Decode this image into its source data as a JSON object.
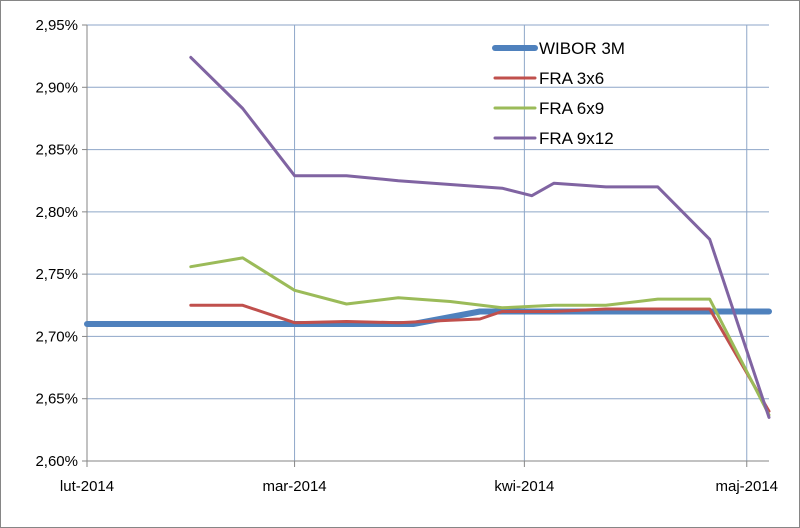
{
  "chart_data": {
    "type": "line",
    "title": "",
    "xlabel": "",
    "ylabel": "",
    "ylim": [
      2.6,
      2.95
    ],
    "y_ticks": [
      2.6,
      2.65,
      2.7,
      2.75,
      2.8,
      2.85,
      2.9,
      2.95
    ],
    "y_tick_labels": [
      "2,60%",
      "2,65%",
      "2,70%",
      "2,75%",
      "2,80%",
      "2,85%",
      "2,90%",
      "2,95%"
    ],
    "xlim": [
      0,
      92
    ],
    "x_ticks": [
      0,
      28,
      59,
      89
    ],
    "x_tick_labels": [
      "lut-2014",
      "mar-2014",
      "kwi-2014",
      "maj-2014"
    ],
    "grid": true,
    "legend_position": "top-right",
    "series": [
      {
        "name": "WIBOR 3M",
        "color": "#4f81bd",
        "line_width": 6,
        "x": [
          0,
          44,
          53,
          92
        ],
        "y": [
          2.71,
          2.71,
          2.72,
          2.72
        ]
      },
      {
        "name": "FRA 3x6",
        "color": "#c0504d",
        "line_width": 3,
        "x": [
          14,
          21,
          28,
          35,
          42,
          49,
          53,
          56,
          63,
          70,
          77,
          84,
          92
        ],
        "y": [
          2.725,
          2.725,
          2.711,
          2.712,
          2.711,
          2.713,
          2.714,
          2.72,
          2.72,
          2.722,
          2.722,
          2.722,
          2.64
        ]
      },
      {
        "name": "FRA 6x9",
        "color": "#9bbb59",
        "line_width": 3,
        "x": [
          14,
          21,
          28,
          35,
          42,
          49,
          56,
          63,
          70,
          77,
          84,
          92
        ],
        "y": [
          2.756,
          2.763,
          2.737,
          2.726,
          2.731,
          2.728,
          2.723,
          2.725,
          2.725,
          2.73,
          2.73,
          2.637
        ]
      },
      {
        "name": "FRA 9x12",
        "color": "#8064a2",
        "line_width": 3,
        "x": [
          14,
          21,
          28,
          35,
          42,
          49,
          56,
          60,
          63,
          70,
          77,
          84,
          92
        ],
        "y": [
          2.924,
          2.883,
          2.829,
          2.829,
          2.825,
          2.822,
          2.819,
          2.813,
          2.823,
          2.82,
          2.82,
          2.778,
          2.635
        ]
      }
    ]
  }
}
